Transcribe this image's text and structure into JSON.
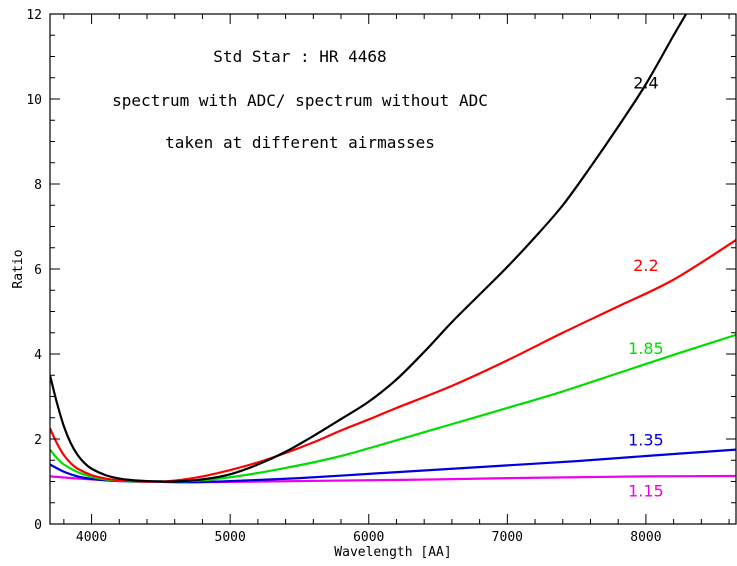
{
  "chart_data": {
    "type": "line",
    "xlabel": "Wavelength [AA]",
    "ylabel": "Ratio",
    "xlim": [
      3700,
      8650
    ],
    "ylim": [
      0,
      12
    ],
    "xticks": [
      4000,
      5000,
      6000,
      7000,
      8000
    ],
    "yticks": [
      0,
      2,
      4,
      6,
      8,
      10,
      12
    ],
    "grid": false,
    "annotations": [
      "Std Star : HR 4468",
      "spectrum with ADC/ spectrum without ADC",
      "taken at different airmasses"
    ],
    "series": [
      {
        "name": "2.4",
        "color": "#000000",
        "x": [
          3700,
          3750,
          3800,
          3850,
          3900,
          3950,
          4000,
          4100,
          4200,
          4300,
          4400,
          4500,
          4600,
          4800,
          5000,
          5200,
          5400,
          5600,
          5800,
          6000,
          6200,
          6400,
          6600,
          6800,
          7000,
          7200,
          7400,
          7600,
          7800,
          8000,
          8200,
          8290
        ],
        "values": [
          3.5,
          2.85,
          2.3,
          1.9,
          1.62,
          1.43,
          1.3,
          1.15,
          1.07,
          1.03,
          1.01,
          1.0,
          1.0,
          1.05,
          1.17,
          1.4,
          1.7,
          2.07,
          2.47,
          2.88,
          3.4,
          4.05,
          4.75,
          5.4,
          6.05,
          6.75,
          7.5,
          8.4,
          9.35,
          10.35,
          11.5,
          12.0
        ]
      },
      {
        "name": "2.2",
        "color": "#ff0000",
        "x": [
          3700,
          3750,
          3800,
          3850,
          3900,
          4000,
          4100,
          4200,
          4300,
          4400,
          4500,
          4600,
          4800,
          5000,
          5200,
          5400,
          5600,
          5800,
          6000,
          6200,
          6600,
          7000,
          7400,
          7800,
          8200,
          8650
        ],
        "values": [
          2.25,
          1.9,
          1.62,
          1.43,
          1.3,
          1.15,
          1.07,
          1.03,
          1.01,
          1.0,
          1.0,
          1.02,
          1.12,
          1.27,
          1.45,
          1.67,
          1.92,
          2.2,
          2.46,
          2.73,
          3.25,
          3.85,
          4.5,
          5.12,
          5.75,
          6.68
        ]
      },
      {
        "name": "1.85",
        "color": "#00dd00",
        "x": [
          3700,
          3750,
          3800,
          3900,
          4000,
          4100,
          4200,
          4300,
          4400,
          4500,
          4600,
          4800,
          5000,
          5200,
          5400,
          5600,
          5800,
          6000,
          6200,
          6600,
          7000,
          7400,
          7800,
          8200,
          8650
        ],
        "values": [
          1.75,
          1.55,
          1.4,
          1.22,
          1.11,
          1.05,
          1.02,
          1.0,
          1.0,
          1.0,
          1.0,
          1.03,
          1.1,
          1.2,
          1.32,
          1.45,
          1.6,
          1.78,
          1.97,
          2.35,
          2.73,
          3.12,
          3.55,
          3.98,
          4.45
        ]
      },
      {
        "name": "1.35",
        "color": "#0000dd",
        "x": [
          3700,
          3800,
          3900,
          4000,
          4100,
          4200,
          4300,
          4400,
          4500,
          4600,
          4800,
          5000,
          5500,
          6000,
          6500,
          7000,
          7500,
          8000,
          8650
        ],
        "values": [
          1.4,
          1.23,
          1.12,
          1.06,
          1.03,
          1.01,
          1.0,
          1.0,
          1.0,
          0.99,
          0.99,
          1.01,
          1.08,
          1.18,
          1.28,
          1.38,
          1.48,
          1.6,
          1.75
        ]
      },
      {
        "name": "1.15",
        "color": "#ee00ee",
        "x": [
          3700,
          3900,
          4100,
          4300,
          4500,
          4700,
          5000,
          5500,
          6000,
          6500,
          7000,
          7500,
          8000,
          8650
        ],
        "values": [
          1.12,
          1.07,
          1.03,
          1.0,
          0.99,
          0.98,
          0.99,
          1.01,
          1.03,
          1.05,
          1.08,
          1.1,
          1.12,
          1.13
        ]
      }
    ]
  }
}
